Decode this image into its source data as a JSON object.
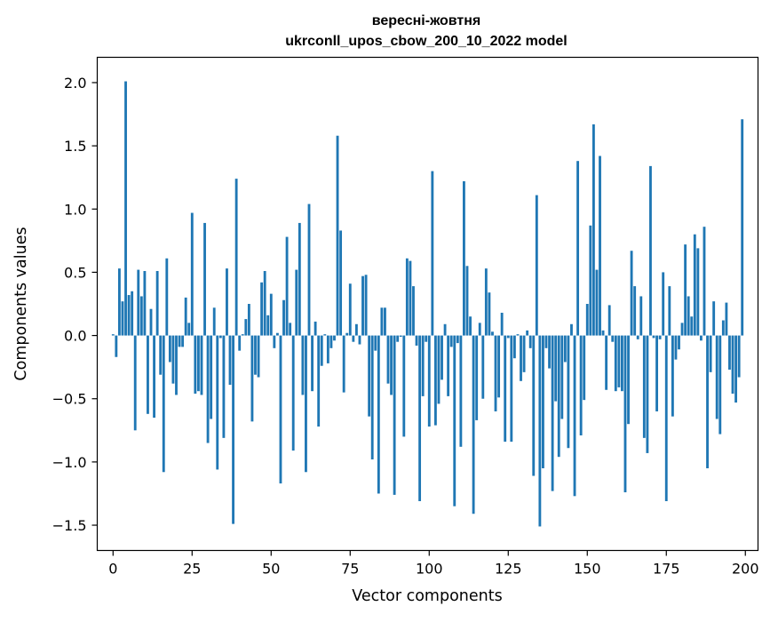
{
  "chart_data": {
    "type": "bar",
    "title_line1": "вересні-жовтня",
    "title_line2": "ukrconll_upos_cbow_200_10_2022 model",
    "xlabel": "Vector components",
    "ylabel": "Components values",
    "xlim": [
      -5,
      204
    ],
    "ylim": [
      -1.7,
      2.2
    ],
    "xticks": [
      0,
      25,
      50,
      75,
      100,
      125,
      150,
      175,
      200
    ],
    "yticks": [
      -1.5,
      -1.0,
      -0.5,
      0.0,
      0.5,
      1.0,
      1.5,
      2.0
    ],
    "ytick_labels": [
      "−1.5",
      "−1.0",
      "−0.5",
      "0.0",
      "0.5",
      "1.0",
      "1.5",
      "2.0"
    ],
    "bar_color": "#1f77b4",
    "grid": false,
    "values": [
      0.01,
      -0.17,
      0.53,
      0.27,
      2.01,
      0.32,
      0.35,
      -0.75,
      0.52,
      0.31,
      0.51,
      -0.62,
      0.21,
      -0.65,
      0.51,
      -0.31,
      -1.08,
      0.61,
      -0.21,
      -0.38,
      -0.47,
      -0.09,
      -0.09,
      0.3,
      0.1,
      0.97,
      -0.46,
      -0.44,
      -0.47,
      0.89,
      -0.85,
      -0.66,
      0.22,
      -1.06,
      -0.02,
      -0.81,
      0.53,
      -0.39,
      -1.49,
      1.24,
      -0.12,
      0.01,
      0.13,
      0.25,
      -0.68,
      -0.31,
      -0.33,
      0.42,
      0.51,
      0.16,
      0.33,
      -0.1,
      0.02,
      -1.17,
      0.28,
      0.78,
      0.1,
      -0.91,
      0.52,
      0.89,
      -0.47,
      -1.08,
      1.04,
      -0.44,
      0.11,
      -0.72,
      -0.24,
      0.01,
      -0.22,
      -0.1,
      -0.04,
      1.58,
      0.83,
      -0.45,
      0.02,
      0.41,
      -0.05,
      0.09,
      -0.07,
      0.47,
      0.48,
      -0.64,
      -0.98,
      -0.12,
      -1.25,
      0.22,
      0.22,
      -0.38,
      -0.47,
      -1.26,
      -0.05,
      -0.01,
      -0.8,
      0.61,
      0.59,
      0.39,
      -0.08,
      -1.31,
      -0.48,
      -0.05,
      -0.72,
      1.3,
      -0.71,
      -0.54,
      -0.35,
      0.09,
      -0.48,
      -0.09,
      -1.35,
      -0.06,
      -0.88,
      1.22,
      0.55,
      0.15,
      -1.41,
      -0.67,
      0.1,
      -0.5,
      0.53,
      0.34,
      0.03,
      -0.6,
      -0.49,
      0.18,
      -0.84,
      -0.02,
      -0.84,
      -0.18,
      0.01,
      -0.36,
      -0.29,
      0.04,
      -0.1,
      -1.11,
      1.11,
      -1.51,
      -1.05,
      -0.1,
      -0.26,
      -1.23,
      -0.52,
      -0.96,
      -0.66,
      -0.21,
      -0.89,
      0.09,
      -1.27,
      1.38,
      -0.79,
      -0.51,
      0.25,
      0.87,
      1.67,
      0.52,
      1.42,
      0.04,
      -0.43,
      0.24,
      -0.05,
      -0.44,
      -0.41,
      -0.44,
      -1.24,
      -0.7,
      0.67,
      0.39,
      -0.03,
      0.31,
      -0.81,
      -0.93,
      1.34,
      -0.02,
      -0.6,
      -0.03,
      0.5,
      -1.31,
      0.39,
      -0.64,
      -0.19,
      -0.11,
      0.1,
      0.72,
      0.31,
      0.15,
      0.8,
      0.69,
      -0.04,
      0.86,
      -1.05,
      -0.29,
      0.27,
      -0.66,
      -0.78,
      0.12,
      0.26,
      -0.27,
      -0.46,
      -0.53,
      -0.33,
      1.71
    ]
  }
}
